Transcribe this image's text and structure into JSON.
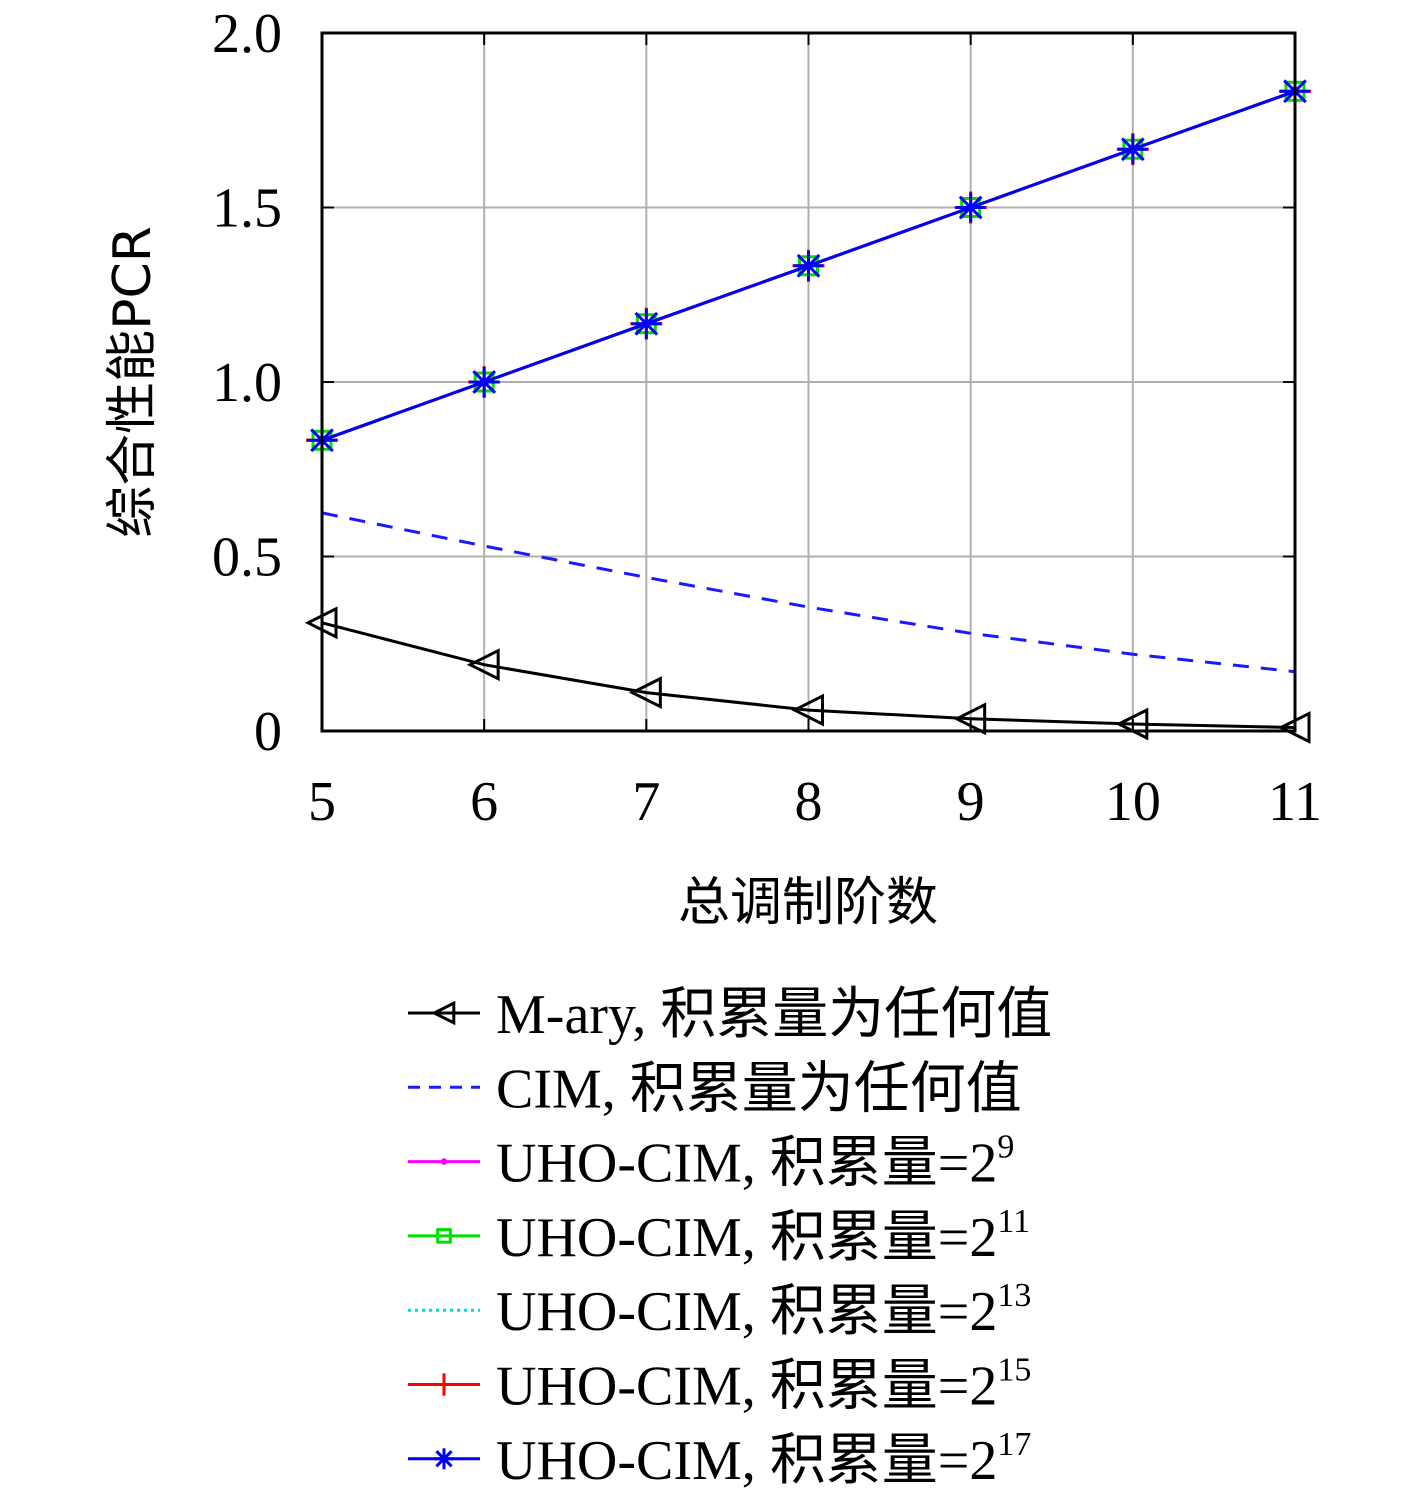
{
  "chart_data": {
    "type": "line",
    "xlabel": "总调制阶数",
    "ylabel": "综合性能PCR",
    "x": [
      5,
      6,
      7,
      8,
      9,
      10,
      11
    ],
    "xlim": [
      5,
      11
    ],
    "ylim": [
      0,
      2.0
    ],
    "x_ticks": [
      "5",
      "6",
      "7",
      "8",
      "9",
      "10",
      "11"
    ],
    "y_ticks": [
      {
        "value": 0,
        "label": "0"
      },
      {
        "value": 0.5,
        "label": "0.5"
      },
      {
        "value": 1.0,
        "label": "1.0"
      },
      {
        "value": 1.5,
        "label": "1.5"
      },
      {
        "value": 2.0,
        "label": "2.0"
      }
    ],
    "grid": true,
    "legend_position": "bottom",
    "series": [
      {
        "name": "M-ary, 积累量为任何值",
        "color": "#000000",
        "dash": "solid",
        "marker": "triangle-left",
        "values": [
          0.31,
          0.19,
          0.11,
          0.06,
          0.035,
          0.02,
          0.01
        ]
      },
      {
        "name": "CIM, 积累量为任何值",
        "color": "#1a1aff",
        "dash": "dashed",
        "marker": "none",
        "values": [
          0.625,
          0.53,
          0.44,
          0.355,
          0.28,
          0.22,
          0.17
        ]
      },
      {
        "name": "UHO-CIM, 积累量=2",
        "sup": "9",
        "color": "#ff00ff",
        "dash": "solid",
        "marker": "dot",
        "values": [
          0.833,
          1.0,
          1.167,
          1.333,
          1.5,
          1.667,
          1.833
        ]
      },
      {
        "name": "UHO-CIM, 积累量=2",
        "sup": "11",
        "color": "#00e000",
        "dash": "solid",
        "marker": "square",
        "values": [
          0.833,
          1.0,
          1.167,
          1.333,
          1.5,
          1.667,
          1.833
        ]
      },
      {
        "name": "UHO-CIM, 积累量=2",
        "sup": "13",
        "color": "#00d8e8",
        "dash": "dotted",
        "marker": "none",
        "values": [
          0.833,
          1.0,
          1.167,
          1.333,
          1.5,
          1.667,
          1.833
        ]
      },
      {
        "name": "UHO-CIM, 积累量=2",
        "sup": "15",
        "color": "#ff0000",
        "dash": "solid",
        "marker": "plus",
        "values": [
          0.833,
          1.0,
          1.167,
          1.333,
          1.5,
          1.667,
          1.833
        ]
      },
      {
        "name": "UHO-CIM, 积累量=2",
        "sup": "17",
        "color": "#0000ff",
        "dash": "solid",
        "marker": "asterisk",
        "values": [
          0.833,
          1.0,
          1.167,
          1.333,
          1.5,
          1.667,
          1.833
        ]
      }
    ]
  }
}
